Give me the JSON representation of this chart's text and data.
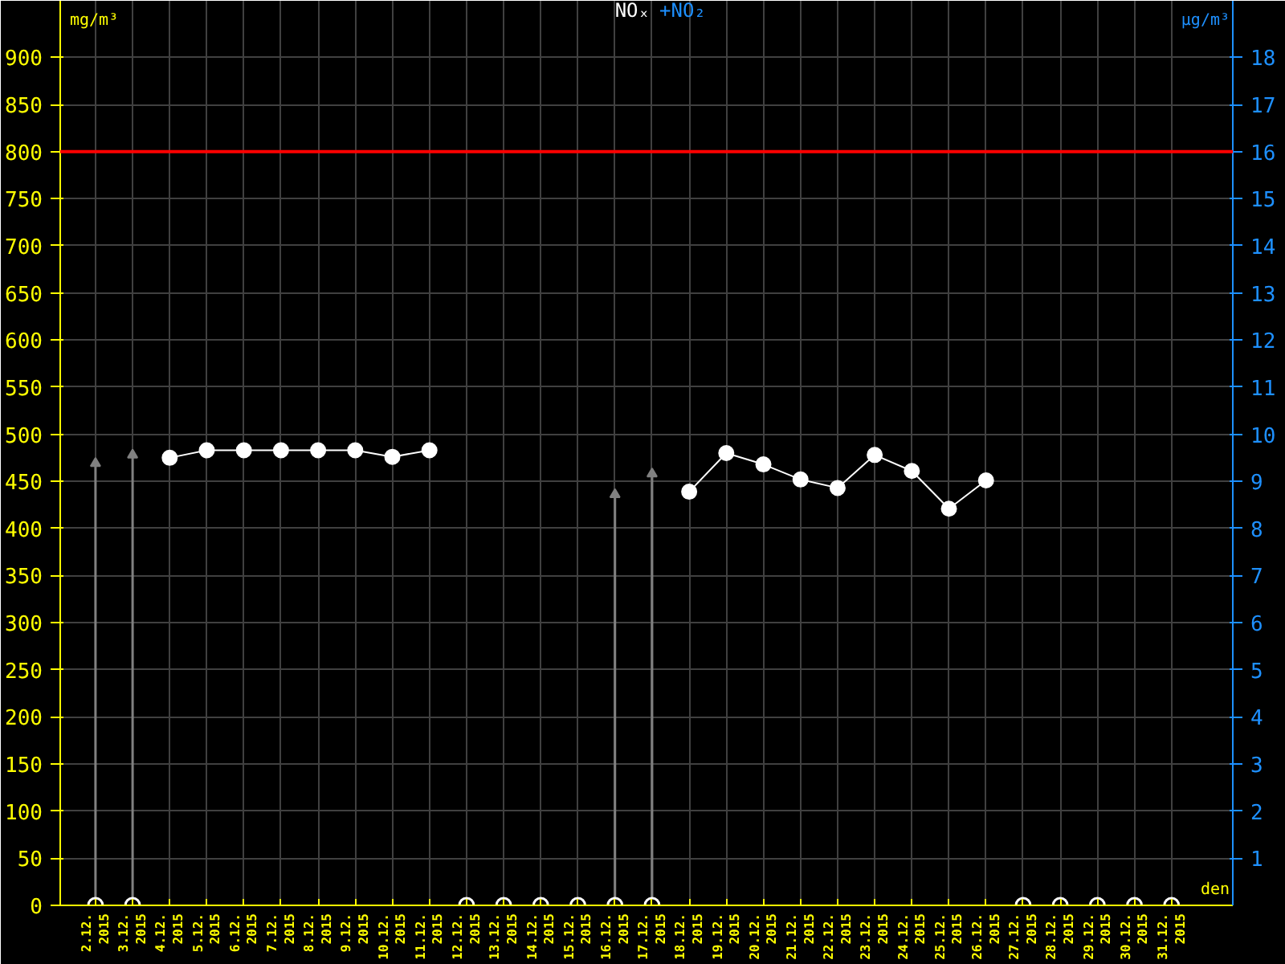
{
  "chart_data": {
    "type": "line",
    "title": "NOₓ",
    "subtitle": "+NO₂",
    "ylabel": "mg/m³",
    "y2label": "µg/m³",
    "xlabel": "den",
    "categories": [
      "2.12.\n2015",
      "3.12.\n2015",
      "4.12.\n2015",
      "5.12.\n2015",
      "6.12.\n2015",
      "7.12.\n2015",
      "8.12.\n2015",
      "9.12.\n2015",
      "10.12.\n2015",
      "11.12.\n2015",
      "12.12.\n2015",
      "13.12.\n2015",
      "14.12.\n2015",
      "15.12.\n2015",
      "16.12.\n2015",
      "17.12.\n2015",
      "18.12.\n2015",
      "19.12.\n2015",
      "20.12.\n2015",
      "21.12.\n2015",
      "22.12.\n2015",
      "23.12.\n2015",
      "24.12.\n2015",
      "25.12.\n2015",
      "26.12.\n2015",
      "27.12.\n2015",
      "28.12.\n2015",
      "29.12.\n2015",
      "30.12.\n2015",
      "31.12.\n2015"
    ],
    "series": [
      {
        "type": "lollipop",
        "color": "#808080",
        "marker": "triangle",
        "values": [
          469,
          478,
          null,
          null,
          null,
          null,
          null,
          null,
          null,
          null,
          null,
          null,
          null,
          null,
          436,
          458,
          null,
          null,
          null,
          null,
          null,
          null,
          null,
          null,
          null,
          null,
          null,
          null,
          null,
          null
        ]
      },
      {
        "type": "scatter",
        "color": "#ffffff",
        "marker": "circle",
        "values": [
          0,
          0,
          null,
          null,
          null,
          null,
          null,
          null,
          null,
          null,
          0,
          0,
          0,
          0,
          0,
          0,
          null,
          null,
          null,
          null,
          null,
          null,
          null,
          null,
          null,
          0,
          0,
          0,
          0,
          0
        ]
      },
      {
        "color": "#ffffff",
        "marker": "circle",
        "values": [
          null,
          null,
          475,
          483,
          483,
          483,
          483,
          483,
          476,
          483,
          null,
          null,
          null,
          null,
          null,
          null,
          439,
          480,
          468,
          452,
          443,
          478,
          461,
          421,
          451,
          null,
          null,
          null,
          null,
          null
        ]
      }
    ],
    "ylim": [
      0,
      960
    ],
    "yticks": [
      0,
      50,
      100,
      150,
      200,
      250,
      300,
      350,
      400,
      450,
      500,
      550,
      600,
      650,
      700,
      750,
      800,
      850,
      900
    ],
    "y2lim": [
      0,
      19.2
    ],
    "y2ticks": [
      1,
      2,
      3,
      4,
      5,
      6,
      7,
      8,
      9,
      10,
      11,
      12,
      13,
      14,
      15,
      16,
      17,
      18
    ],
    "ref_lines": [
      {
        "axis": "y",
        "value": 800,
        "color": "#ff0000"
      }
    ],
    "grid": true
  }
}
